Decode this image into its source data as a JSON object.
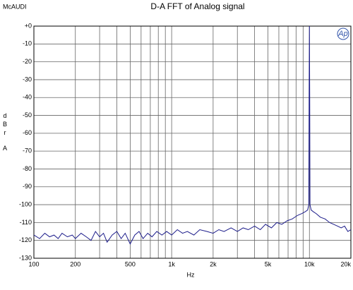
{
  "chart_data": {
    "type": "line",
    "title": "D-A FFT of Analog signal",
    "brand": "McAUDI",
    "logo": "Ap",
    "xlabel": "Hz",
    "ylabel": "dBrA",
    "xscale": "log",
    "grid": true,
    "xlim": [
      100,
      20000
    ],
    "ylim": [
      -130,
      0
    ],
    "xticks": [
      100,
      200,
      500,
      {
        "value": 1000,
        "label": "1k"
      },
      {
        "value": 2000,
        "label": "2k"
      },
      {
        "value": 5000,
        "label": "5k"
      },
      {
        "value": 10000,
        "label": "10k"
      },
      {
        "value": 20000,
        "label": "20k"
      }
    ],
    "xminor": [
      300,
      400,
      600,
      700,
      800,
      900,
      3000,
      4000,
      6000,
      7000,
      8000,
      9000
    ],
    "yticks": [
      {
        "value": 0,
        "label": "+0"
      },
      -10,
      -20,
      -30,
      -40,
      -50,
      -60,
      -70,
      -80,
      -90,
      -100,
      -110,
      -120,
      -130
    ],
    "x": [
      100,
      110,
      120,
      130,
      140,
      150,
      160,
      175,
      190,
      200,
      220,
      240,
      260,
      280,
      300,
      320,
      340,
      370,
      400,
      430,
      460,
      500,
      540,
      580,
      620,
      670,
      720,
      780,
      850,
      920,
      1000,
      1100,
      1200,
      1300,
      1450,
      1600,
      1800,
      2000,
      2200,
      2400,
      2700,
      3000,
      3300,
      3600,
      4000,
      4400,
      4800,
      5300,
      5800,
      6300,
      6900,
      7500,
      8200,
      8800,
      9300,
      9700,
      9900,
      9950,
      10000,
      10050,
      10100,
      10300,
      10700,
      11200,
      12000,
      13000,
      14000,
      15000,
      16000,
      17000,
      18000,
      19000,
      20000
    ],
    "series": [
      {
        "color": "#1c1c8a",
        "values": [
          -117,
          -119,
          -116,
          -118,
          -117,
          -119,
          -116,
          -118,
          -117,
          -119,
          -116,
          -118,
          -120,
          -115,
          -118,
          -116,
          -121,
          -117,
          -115,
          -119,
          -116,
          -122,
          -117,
          -115,
          -119,
          -116,
          -118,
          -115,
          -117,
          -115,
          -117,
          -114,
          -116,
          -115,
          -117,
          -114,
          -115,
          -116,
          -114,
          -115,
          -113,
          -115,
          -113,
          -114,
          -112,
          -114,
          -111,
          -113,
          -110,
          -111,
          -109,
          -108,
          -106,
          -105,
          -104,
          -103,
          -100,
          -40,
          0,
          -40,
          -100,
          -103,
          -104,
          -105,
          -107,
          -108,
          -110,
          -111,
          -112,
          -113,
          -112,
          -115,
          -114
        ]
      }
    ]
  }
}
